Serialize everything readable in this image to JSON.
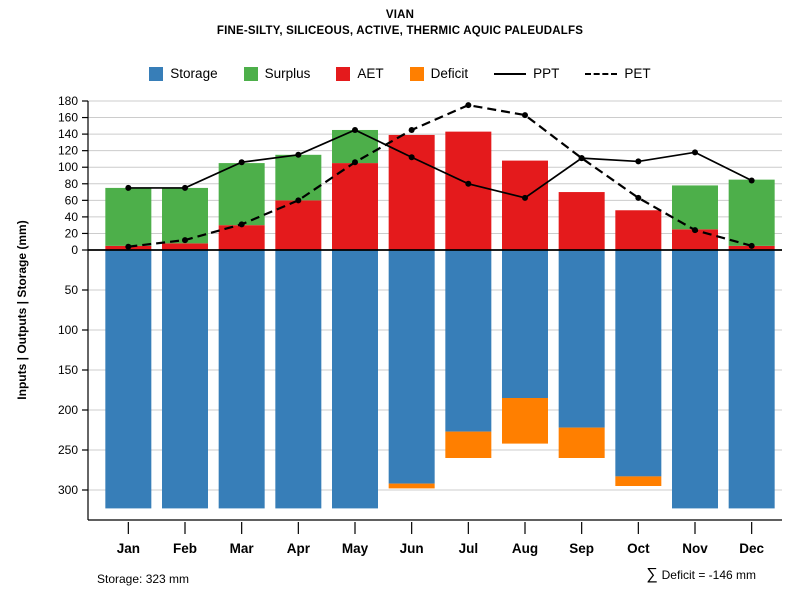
{
  "title": "VIAN",
  "subtitle": "FINE-SILTY, SILICEOUS, ACTIVE, THERMIC AQUIC PALEUDALFS",
  "legend": {
    "items": [
      {
        "label": "Storage",
        "swatch": "storage"
      },
      {
        "label": "Surplus",
        "swatch": "surplus"
      },
      {
        "label": "AET",
        "swatch": "aet"
      },
      {
        "label": "Deficit",
        "swatch": "deficit"
      },
      {
        "label": "PPT",
        "line": "solid"
      },
      {
        "label": "PET",
        "line": "dashed"
      }
    ]
  },
  "colors": {
    "storage": "#377EB8",
    "surplus": "#4DAF4A",
    "aet": "#E41A1C",
    "deficit": "#FF7F00",
    "line": "#000000",
    "grid": "#CCCCCC"
  },
  "ylabel": "Inputs | Outputs | Storage    (mm)",
  "footer": {
    "left": "Storage: 323 mm",
    "sigma": "∑",
    "right": "Deficit = -146 mm"
  },
  "chart_data": {
    "type": "bar",
    "description": "Monthly soil water balance chart: stacked bars above the zero line show AET (red) and Surplus (green) in mm; bars below the zero line show soil moisture Storage (blue) with Deficit (orange) appended on an inverted axis; PPT (solid line with dots) and PET (dashed line with dots) are overlaid. Upper axis 0-180 mm, lower inverted axis 0-300+ mm.",
    "categories": [
      "Jan",
      "Feb",
      "Mar",
      "Apr",
      "May",
      "Jun",
      "Jul",
      "Aug",
      "Sep",
      "Oct",
      "Nov",
      "Dec"
    ],
    "series": [
      {
        "name": "AET",
        "values": [
          5,
          8,
          30,
          60,
          105,
          139,
          143,
          108,
          70,
          48,
          25,
          5
        ]
      },
      {
        "name": "Surplus",
        "values": [
          70,
          67,
          75,
          55,
          40,
          0,
          0,
          0,
          0,
          0,
          53,
          80
        ]
      },
      {
        "name": "Storage",
        "values": [
          323,
          323,
          323,
          323,
          323,
          292,
          227,
          185,
          222,
          283,
          323,
          323
        ]
      },
      {
        "name": "Deficit",
        "values": [
          0,
          0,
          0,
          0,
          0,
          6,
          33,
          57,
          38,
          12,
          0,
          0
        ]
      },
      {
        "name": "PPT",
        "values": [
          75,
          75,
          106,
          115,
          145,
          112,
          80,
          63,
          111,
          107,
          118,
          84
        ]
      },
      {
        "name": "PET",
        "values": [
          4,
          12,
          31,
          60,
          106,
          145,
          175,
          163,
          111,
          63,
          24,
          5
        ]
      }
    ],
    "y_axis": {
      "upper_ticks": [
        20,
        40,
        60,
        80,
        100,
        120,
        140,
        160,
        180
      ],
      "zero_label": "0",
      "lower_ticks": [
        50,
        100,
        150,
        200,
        250,
        300
      ],
      "upper_max": 180,
      "lower_max": 300
    },
    "storage_capacity_mm": 323,
    "deficit_sum_mm": -146,
    "legend_position": "top",
    "grid": true
  }
}
